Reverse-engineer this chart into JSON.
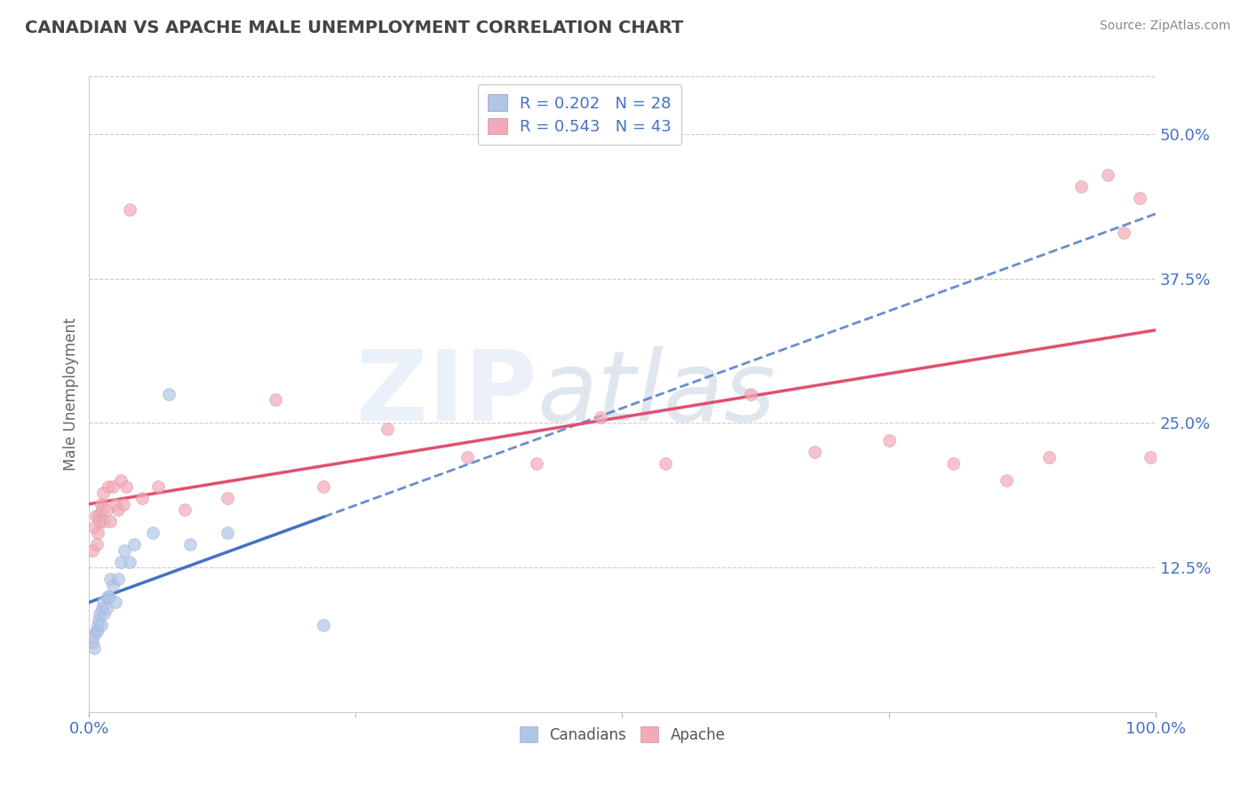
{
  "title": "CANADIAN VS APACHE MALE UNEMPLOYMENT CORRELATION CHART",
  "source": "Source: ZipAtlas.com",
  "ylabel": "Male Unemployment",
  "xmin": 0.0,
  "xmax": 1.0,
  "ymin": 0.0,
  "ymax": 0.55,
  "yticks": [
    0.0,
    0.125,
    0.25,
    0.375,
    0.5
  ],
  "ytick_labels": [
    "",
    "12.5%",
    "25.0%",
    "37.5%",
    "50.0%"
  ],
  "legend_entries": [
    {
      "label": "R = 0.202   N = 28",
      "color": "#aec6e8"
    },
    {
      "label": "R = 0.543   N = 43",
      "color": "#f4a9b8"
    }
  ],
  "legend_footer": [
    "Canadians",
    "Apache"
  ],
  "canadians_x": [
    0.003,
    0.004,
    0.005,
    0.006,
    0.007,
    0.008,
    0.009,
    0.01,
    0.011,
    0.012,
    0.013,
    0.014,
    0.016,
    0.017,
    0.019,
    0.02,
    0.022,
    0.025,
    0.027,
    0.03,
    0.033,
    0.038,
    0.042,
    0.06,
    0.075,
    0.095,
    0.13,
    0.22
  ],
  "canadians_y": [
    0.06,
    0.065,
    0.055,
    0.07,
    0.07,
    0.075,
    0.08,
    0.085,
    0.075,
    0.09,
    0.095,
    0.085,
    0.09,
    0.1,
    0.1,
    0.115,
    0.11,
    0.095,
    0.115,
    0.13,
    0.14,
    0.13,
    0.145,
    0.155,
    0.275,
    0.145,
    0.155,
    0.075
  ],
  "apache_x": [
    0.003,
    0.005,
    0.006,
    0.007,
    0.008,
    0.009,
    0.01,
    0.011,
    0.012,
    0.013,
    0.014,
    0.016,
    0.018,
    0.02,
    0.022,
    0.025,
    0.027,
    0.03,
    0.032,
    0.035,
    0.038,
    0.05,
    0.065,
    0.09,
    0.13,
    0.175,
    0.22,
    0.28,
    0.355,
    0.42,
    0.48,
    0.54,
    0.62,
    0.68,
    0.75,
    0.81,
    0.86,
    0.9,
    0.93,
    0.955,
    0.97,
    0.985,
    0.995
  ],
  "apache_y": [
    0.14,
    0.16,
    0.17,
    0.145,
    0.155,
    0.17,
    0.165,
    0.18,
    0.175,
    0.19,
    0.165,
    0.175,
    0.195,
    0.165,
    0.195,
    0.18,
    0.175,
    0.2,
    0.18,
    0.195,
    0.435,
    0.185,
    0.195,
    0.175,
    0.185,
    0.27,
    0.195,
    0.245,
    0.22,
    0.215,
    0.255,
    0.215,
    0.275,
    0.225,
    0.235,
    0.215,
    0.2,
    0.22,
    0.455,
    0.465,
    0.415,
    0.445,
    0.22
  ],
  "canadian_line_color": "#4472c4",
  "canadian_line_style_solid": "-",
  "canadian_line_style_dash": "--",
  "apache_line_color": "#e05070",
  "apache_line_style": "-",
  "canadian_dot_color": "#aec6e8",
  "apache_dot_color": "#f4a9b8",
  "dot_size": 100,
  "dot_alpha": 0.7,
  "background_color": "#ffffff",
  "grid_color": "#cccccc",
  "grid_style": "--",
  "watermark_color": "#c8d8f0",
  "watermark_alpha": 0.35
}
